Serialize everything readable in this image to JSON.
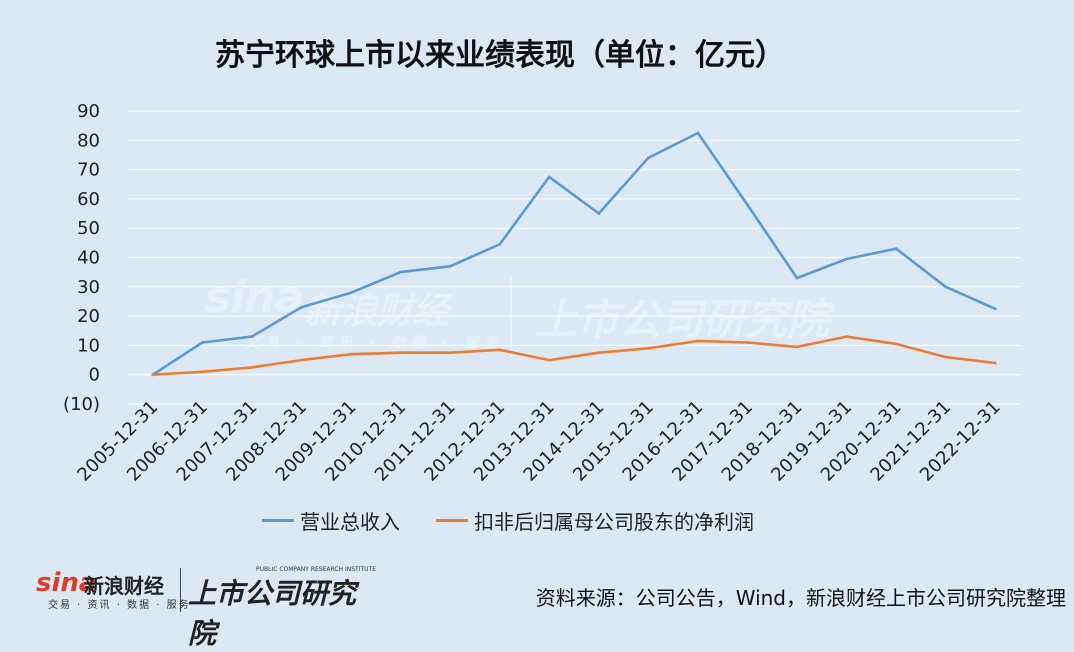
{
  "title": "苏宁环球上市以来业绩表现（单位：亿元）",
  "chart_data": {
    "type": "line",
    "categories": [
      "2005-12-31",
      "2006-12-31",
      "2007-12-31",
      "2008-12-31",
      "2009-12-31",
      "2010-12-31",
      "2011-12-31",
      "2012-12-31",
      "2013-12-31",
      "2014-12-31",
      "2015-12-31",
      "2016-12-31",
      "2017-12-31",
      "2018-12-31",
      "2019-12-31",
      "2020-12-31",
      "2021-12-31",
      "2022-12-31"
    ],
    "series": [
      {
        "name": "营业总收入",
        "color": "#5b9bd5",
        "values": [
          0,
          11,
          13,
          23,
          28,
          35,
          37,
          44.5,
          67.5,
          55,
          74,
          82.5,
          58,
          33,
          39.5,
          43,
          30,
          22.5
        ]
      },
      {
        "name": "扣非后归属母公司股东的净利润",
        "color": "#ed7d31",
        "values": [
          0,
          1,
          2.5,
          5,
          7,
          7.5,
          7.5,
          8.5,
          5,
          7.5,
          9,
          11.5,
          11,
          9.5,
          13,
          10.5,
          6,
          4
        ]
      }
    ],
    "yticks": [
      "(10)",
      "0",
      "10",
      "20",
      "30",
      "40",
      "50",
      "60",
      "70",
      "80",
      "90"
    ],
    "ylim": [
      -10,
      90
    ],
    "negative_tick_color": "#cc0000",
    "grid": true,
    "legend_position": "bottom"
  },
  "watermark": {
    "brand": "sina",
    "name": "新浪财经",
    "sub": "交易 · 资讯 · 数据 · 服务",
    "institute": "上市公司研究院"
  },
  "footer": {
    "brand": "sina",
    "name": "新浪财经",
    "sub": "交易 · 资讯 · 数据 · 服务",
    "institute_en": "PUBLIC COMPANY RESEARCH INSTITUTE",
    "institute": "上市公司研究院",
    "source": "资料来源：公司公告，Wind，新浪财经上市公司研究院整理"
  }
}
